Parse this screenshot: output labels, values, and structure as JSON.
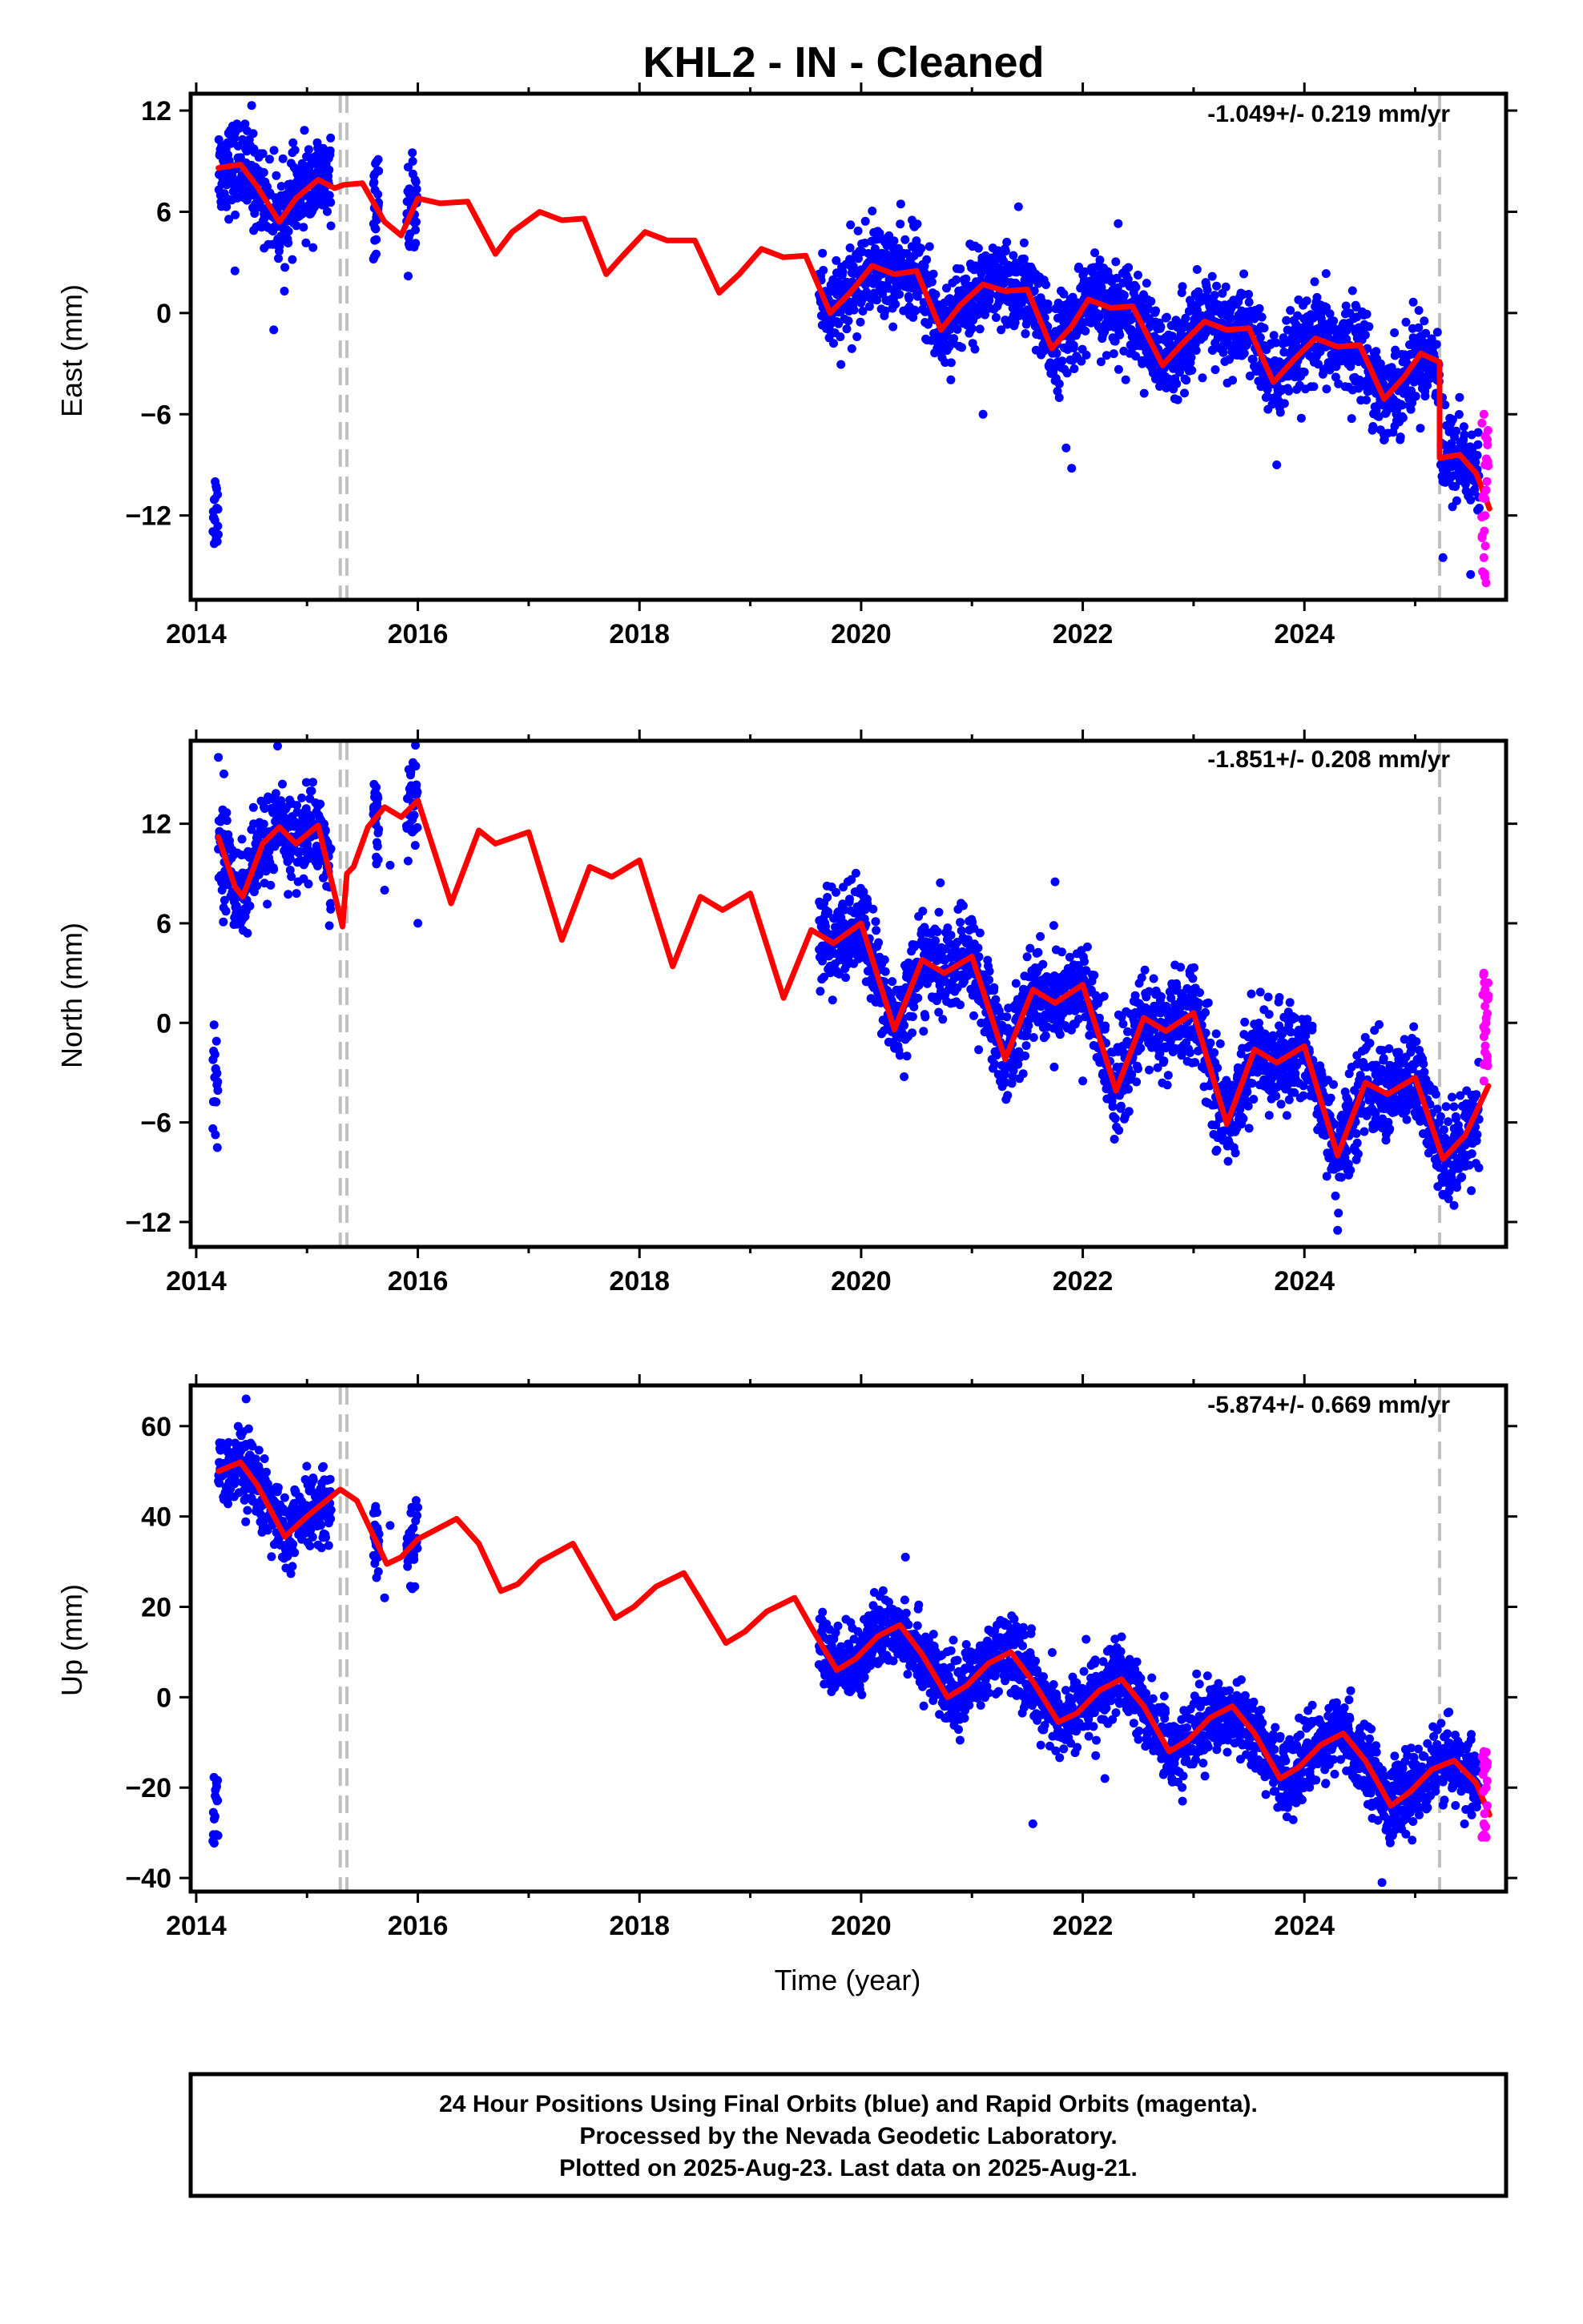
{
  "title": "KHL2  - IN - Cleaned",
  "xlabel": "Time (year)",
  "footer": {
    "lines": [
      "24 Hour Positions Using Final Orbits (blue) and Rapid Orbits (magenta).",
      "Processed by the Nevada Geodetic Laboratory.",
      "Plotted on 2025-Aug-23. Last data on 2025-Aug-21."
    ]
  },
  "colors": {
    "final": "#0000ff",
    "rapid": "#ff00ff",
    "model": "#ff0000",
    "events": "#c0c0c0"
  },
  "chart_data": [
    {
      "type": "scatter",
      "ylabel": "East (mm)",
      "rate": "-1.049+/- 0.219 mm/yr",
      "xlim": [
        2013.95,
        2025.82
      ],
      "ylim": [
        -17.0,
        13.0
      ],
      "xticks": [
        2014,
        2016,
        2018,
        2020,
        2022,
        2024
      ],
      "yticks": [
        12,
        6,
        0,
        -6,
        -12
      ],
      "event_lines": [
        2015.3,
        2015.36,
        2025.22
      ],
      "model": [
        [
          2014.2,
          8.6
        ],
        [
          2014.4,
          8.8
        ],
        [
          2014.55,
          7.5
        ],
        [
          2014.75,
          5.4
        ],
        [
          2014.9,
          6.8
        ],
        [
          2015.1,
          7.9
        ],
        [
          2015.25,
          7.4
        ],
        [
          2015.33,
          7.6
        ],
        [
          2015.5,
          7.7
        ],
        [
          2015.7,
          5.4
        ],
        [
          2015.85,
          4.6
        ],
        [
          2016.0,
          6.8
        ],
        [
          2016.2,
          6.5
        ],
        [
          2016.45,
          6.6
        ],
        [
          2016.7,
          3.5
        ],
        [
          2016.85,
          4.8
        ],
        [
          2017.1,
          6.0
        ],
        [
          2017.3,
          5.5
        ],
        [
          2017.5,
          5.6
        ],
        [
          2017.7,
          2.3
        ],
        [
          2017.85,
          3.4
        ],
        [
          2018.05,
          4.8
        ],
        [
          2018.25,
          4.3
        ],
        [
          2018.5,
          4.3
        ],
        [
          2018.72,
          1.2
        ],
        [
          2018.9,
          2.3
        ],
        [
          2019.1,
          3.8
        ],
        [
          2019.3,
          3.3
        ],
        [
          2019.5,
          3.4
        ],
        [
          2019.72,
          0.0
        ],
        [
          2019.9,
          1.2
        ],
        [
          2020.1,
          2.8
        ],
        [
          2020.3,
          2.3
        ],
        [
          2020.5,
          2.5
        ],
        [
          2020.72,
          -1.0
        ],
        [
          2020.9,
          0.5
        ],
        [
          2021.1,
          1.7
        ],
        [
          2021.3,
          1.3
        ],
        [
          2021.5,
          1.4
        ],
        [
          2021.72,
          -2.1
        ],
        [
          2021.9,
          -0.8
        ],
        [
          2022.05,
          0.8
        ],
        [
          2022.25,
          0.3
        ],
        [
          2022.45,
          0.4
        ],
        [
          2022.72,
          -3.1
        ],
        [
          2022.9,
          -1.8
        ],
        [
          2023.1,
          -0.5
        ],
        [
          2023.3,
          -1.0
        ],
        [
          2023.5,
          -0.9
        ],
        [
          2023.72,
          -4.1
        ],
        [
          2023.9,
          -2.8
        ],
        [
          2024.1,
          -1.5
        ],
        [
          2024.3,
          -2.0
        ],
        [
          2024.5,
          -1.9
        ],
        [
          2024.72,
          -5.1
        ],
        [
          2024.9,
          -3.8
        ],
        [
          2025.05,
          -2.4
        ],
        [
          2025.22,
          -2.9
        ],
        [
          2025.22,
          -8.6
        ],
        [
          2025.4,
          -8.4
        ],
        [
          2025.55,
          -9.5
        ],
        [
          2025.67,
          -11.6
        ]
      ],
      "rapid_range": [
        2025.6,
        2025.66
      ],
      "rapid_points": [
        [
          2025.62,
          -6.0
        ],
        [
          2025.63,
          -9.0
        ],
        [
          2025.64,
          -10.5
        ],
        [
          2025.63,
          -12.0
        ],
        [
          2025.62,
          -14.5
        ],
        [
          2025.64,
          -16.0
        ],
        [
          2025.65,
          -7.5
        ],
        [
          2025.63,
          -11.0
        ]
      ],
      "outliers": [
        [
          2014.35,
          2.5
        ],
        [
          2014.7,
          -1.0
        ],
        [
          2015.6,
          3.2
        ],
        [
          2015.95,
          9.5
        ],
        [
          2014.5,
          12.3
        ],
        [
          2021.1,
          -6.0
        ],
        [
          2021.85,
          -8.0
        ],
        [
          2021.9,
          -9.2
        ],
        [
          2023.75,
          -9.0
        ],
        [
          2025.25,
          -14.5
        ],
        [
          2025.4,
          -5.0
        ],
        [
          2025.5,
          -15.5
        ],
        [
          2021.42,
          6.3
        ],
        [
          2022.32,
          5.3
        ]
      ]
    },
    {
      "type": "scatter",
      "ylabel": "North (mm)",
      "rate": "-1.851+/- 0.208 mm/yr",
      "xlim": [
        2013.95,
        2025.82
      ],
      "ylim": [
        -13.5,
        17.0
      ],
      "xticks": [
        2014,
        2016,
        2018,
        2020,
        2022,
        2024
      ],
      "yticks": [
        12,
        6,
        0,
        -6,
        -12
      ],
      "event_lines": [
        2015.3,
        2015.36,
        2025.22
      ],
      "model": [
        [
          2014.2,
          11.2
        ],
        [
          2014.35,
          8.2
        ],
        [
          2014.42,
          7.6
        ],
        [
          2014.6,
          10.8
        ],
        [
          2014.75,
          11.8
        ],
        [
          2014.9,
          10.8
        ],
        [
          2015.1,
          11.9
        ],
        [
          2015.32,
          5.8
        ],
        [
          2015.36,
          9.0
        ],
        [
          2015.42,
          9.4
        ],
        [
          2015.55,
          11.8
        ],
        [
          2015.7,
          13.0
        ],
        [
          2015.85,
          12.4
        ],
        [
          2016.0,
          13.4
        ],
        [
          2016.3,
          7.2
        ],
        [
          2016.55,
          11.6
        ],
        [
          2016.7,
          10.8
        ],
        [
          2017.0,
          11.5
        ],
        [
          2017.3,
          5.0
        ],
        [
          2017.55,
          9.4
        ],
        [
          2017.75,
          8.8
        ],
        [
          2018.0,
          9.8
        ],
        [
          2018.3,
          3.4
        ],
        [
          2018.55,
          7.6
        ],
        [
          2018.75,
          6.8
        ],
        [
          2019.0,
          7.8
        ],
        [
          2019.3,
          1.5
        ],
        [
          2019.55,
          5.6
        ],
        [
          2019.75,
          4.8
        ],
        [
          2020.0,
          6.0
        ],
        [
          2020.3,
          -0.4
        ],
        [
          2020.55,
          3.8
        ],
        [
          2020.75,
          3.0
        ],
        [
          2021.0,
          4.0
        ],
        [
          2021.3,
          -2.2
        ],
        [
          2021.55,
          2.0
        ],
        [
          2021.75,
          1.2
        ],
        [
          2022.0,
          2.3
        ],
        [
          2022.3,
          -4.1
        ],
        [
          2022.55,
          0.3
        ],
        [
          2022.75,
          -0.5
        ],
        [
          2023.0,
          0.6
        ],
        [
          2023.3,
          -6.1
        ],
        [
          2023.55,
          -1.6
        ],
        [
          2023.75,
          -2.4
        ],
        [
          2024.0,
          -1.4
        ],
        [
          2024.3,
          -8.0
        ],
        [
          2024.55,
          -3.6
        ],
        [
          2024.75,
          -4.3
        ],
        [
          2025.0,
          -3.3
        ],
        [
          2025.25,
          -8.2
        ],
        [
          2025.45,
          -6.8
        ],
        [
          2025.66,
          -3.8
        ]
      ],
      "rapid_range": [
        2025.6,
        2025.66
      ],
      "rapid_points": [
        [
          2025.62,
          3.0
        ],
        [
          2025.63,
          1.0
        ],
        [
          2025.64,
          -0.5
        ],
        [
          2025.63,
          2.0
        ],
        [
          2025.65,
          -2.0
        ],
        [
          2025.62,
          -3.5
        ],
        [
          2025.64,
          0.0
        ]
      ],
      "outliers": [
        [
          2014.2,
          16.0
        ],
        [
          2014.25,
          15.0
        ],
        [
          2015.7,
          8.0
        ],
        [
          2015.75,
          9.5
        ],
        [
          2016.0,
          6.0
        ],
        [
          2021.75,
          8.5
        ],
        [
          2024.3,
          -12.5
        ],
        [
          2025.35,
          -11.0
        ],
        [
          2022.0,
          -3.5
        ]
      ]
    },
    {
      "type": "scatter",
      "ylabel": "Up (mm)",
      "rate": "-5.874+/- 0.669 mm/yr",
      "xlim": [
        2013.95,
        2025.82
      ],
      "ylim": [
        -43.0,
        69.0
      ],
      "xticks": [
        2014,
        2016,
        2018,
        2020,
        2022,
        2024
      ],
      "yticks": [
        60,
        40,
        20,
        0,
        -20,
        -40
      ],
      "event_lines": [
        2015.3,
        2015.36,
        2025.22
      ],
      "model": [
        [
          2014.2,
          50.0
        ],
        [
          2014.4,
          52.0
        ],
        [
          2014.55,
          47.0
        ],
        [
          2014.8,
          35.5
        ],
        [
          2015.0,
          40.0
        ],
        [
          2015.3,
          46.0
        ],
        [
          2015.45,
          43.5
        ],
        [
          2015.72,
          29.5
        ],
        [
          2015.85,
          31.0
        ],
        [
          2016.0,
          35.0
        ],
        [
          2016.35,
          39.5
        ],
        [
          2016.55,
          34.0
        ],
        [
          2016.75,
          23.5
        ],
        [
          2016.9,
          25.0
        ],
        [
          2017.1,
          30.0
        ],
        [
          2017.4,
          34.0
        ],
        [
          2017.55,
          27.5
        ],
        [
          2017.78,
          17.5
        ],
        [
          2017.95,
          20.0
        ],
        [
          2018.15,
          24.5
        ],
        [
          2018.4,
          27.5
        ],
        [
          2018.55,
          21.5
        ],
        [
          2018.78,
          12.0
        ],
        [
          2018.95,
          14.5
        ],
        [
          2019.15,
          19.0
        ],
        [
          2019.4,
          22.0
        ],
        [
          2019.55,
          15.5
        ],
        [
          2019.78,
          6.0
        ],
        [
          2019.95,
          8.5
        ],
        [
          2020.15,
          13.5
        ],
        [
          2020.35,
          16.0
        ],
        [
          2020.55,
          9.5
        ],
        [
          2020.78,
          0.0
        ],
        [
          2020.95,
          2.5
        ],
        [
          2021.15,
          7.5
        ],
        [
          2021.35,
          10.0
        ],
        [
          2021.55,
          3.5
        ],
        [
          2021.78,
          -5.5
        ],
        [
          2021.95,
          -3.5
        ],
        [
          2022.15,
          1.5
        ],
        [
          2022.35,
          4.0
        ],
        [
          2022.55,
          -2.0
        ],
        [
          2022.78,
          -12.0
        ],
        [
          2022.95,
          -9.5
        ],
        [
          2023.15,
          -4.5
        ],
        [
          2023.35,
          -2.0
        ],
        [
          2023.55,
          -8.0
        ],
        [
          2023.78,
          -18.0
        ],
        [
          2023.95,
          -15.5
        ],
        [
          2024.15,
          -10.5
        ],
        [
          2024.35,
          -8.0
        ],
        [
          2024.55,
          -14.0
        ],
        [
          2024.78,
          -24.0
        ],
        [
          2024.95,
          -21.0
        ],
        [
          2025.15,
          -16.0
        ],
        [
          2025.35,
          -14.0
        ],
        [
          2025.55,
          -19.0
        ],
        [
          2025.67,
          -26.0
        ]
      ],
      "rapid_range": [
        2025.6,
        2025.66
      ],
      "rapid_points": [
        [
          2025.62,
          -12.0
        ],
        [
          2025.63,
          -16.0
        ],
        [
          2025.64,
          -20.0
        ],
        [
          2025.65,
          -24.0
        ],
        [
          2025.62,
          -28.0
        ],
        [
          2025.64,
          -31.0
        ],
        [
          2025.63,
          -14.0
        ]
      ],
      "outliers": [
        [
          2014.45,
          66.0
        ],
        [
          2015.7,
          22.0
        ],
        [
          2015.75,
          38.0
        ],
        [
          2016.0,
          42.0
        ],
        [
          2021.55,
          -28.0
        ],
        [
          2022.2,
          -18.0
        ],
        [
          2024.7,
          -41.0
        ],
        [
          2022.9,
          -23.0
        ],
        [
          2020.4,
          31.0
        ]
      ]
    }
  ]
}
